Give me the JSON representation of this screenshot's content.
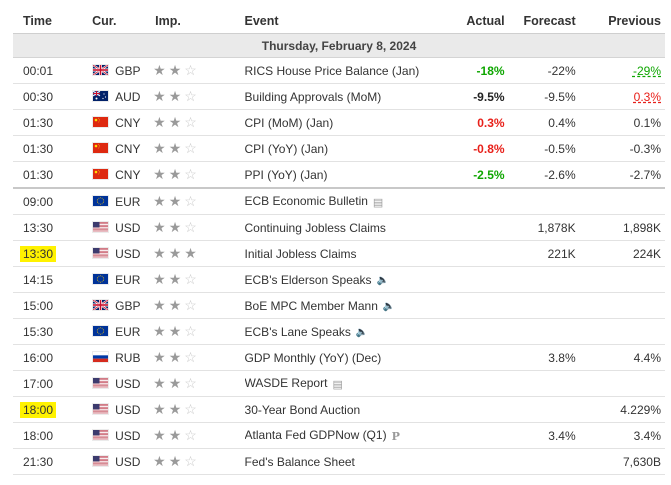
{
  "headers": {
    "time": "Time",
    "cur": "Cur.",
    "imp": "Imp.",
    "event": "Event",
    "actual": "Actual",
    "forecast": "Forecast",
    "previous": "Previous"
  },
  "day_label": "Thursday, February 8, 2024",
  "colors": {
    "positive": "#0ea600",
    "negative": "#e8201a",
    "highlight": "#fff200",
    "star_full": "#9a9a9a",
    "star_empty": "#c9c9c9"
  },
  "rows": [
    {
      "time": "00:01",
      "flag": "gb-flag-icon",
      "cur": "GBP",
      "stars": 2,
      "event": "RICS House Price Balance (Jan)",
      "icon": "",
      "actual": "-18%",
      "actual_style": "green",
      "forecast": "-22%",
      "previous": "-29%",
      "previous_style": "prev-green",
      "highlight": false
    },
    {
      "time": "00:30",
      "flag": "au-flag-icon",
      "cur": "AUD",
      "stars": 2,
      "event": "Building Approvals (MoM)",
      "icon": "",
      "actual": "-9.5%",
      "actual_style": "bold",
      "forecast": "-9.5%",
      "previous": "0.3%",
      "previous_style": "prev-red",
      "highlight": false
    },
    {
      "time": "01:30",
      "flag": "cn-flag-icon",
      "cur": "CNY",
      "stars": 2,
      "event": "CPI (MoM) (Jan)",
      "icon": "",
      "actual": "0.3%",
      "actual_style": "red",
      "forecast": "0.4%",
      "previous": "0.1%",
      "previous_style": "",
      "highlight": false
    },
    {
      "time": "01:30",
      "flag": "cn-flag-icon",
      "cur": "CNY",
      "stars": 2,
      "event": "CPI (YoY) (Jan)",
      "icon": "",
      "actual": "-0.8%",
      "actual_style": "red",
      "forecast": "-0.5%",
      "previous": "-0.3%",
      "previous_style": "",
      "highlight": false
    },
    {
      "time": "01:30",
      "flag": "cn-flag-icon",
      "cur": "CNY",
      "stars": 2,
      "event": "PPI (YoY) (Jan)",
      "icon": "",
      "actual": "-2.5%",
      "actual_style": "green",
      "forecast": "-2.6%",
      "previous": "-2.7%",
      "previous_style": "",
      "highlight": false,
      "sep": true
    },
    {
      "time": "09:00",
      "flag": "eu-flag-icon",
      "cur": "EUR",
      "stars": 2,
      "event": "ECB Economic Bulletin",
      "icon": "report",
      "actual": "",
      "actual_style": "",
      "forecast": "",
      "previous": "",
      "previous_style": "",
      "highlight": false
    },
    {
      "time": "13:30",
      "flag": "us-flag-icon",
      "cur": "USD",
      "stars": 2,
      "event": "Continuing Jobless Claims",
      "icon": "",
      "actual": "",
      "actual_style": "",
      "forecast": "1,878K",
      "previous": "1,898K",
      "previous_style": "",
      "highlight": false
    },
    {
      "time": "13:30",
      "flag": "us-flag-icon",
      "cur": "USD",
      "stars": 3,
      "event": "Initial Jobless Claims",
      "icon": "",
      "actual": "",
      "actual_style": "",
      "forecast": "221K",
      "previous": "224K",
      "previous_style": "",
      "highlight": true
    },
    {
      "time": "14:15",
      "flag": "eu-flag-icon",
      "cur": "EUR",
      "stars": 2,
      "event": "ECB's Elderson Speaks",
      "icon": "speaker",
      "actual": "",
      "actual_style": "",
      "forecast": "",
      "previous": "",
      "previous_style": "",
      "highlight": false
    },
    {
      "time": "15:00",
      "flag": "gb-flag-icon",
      "cur": "GBP",
      "stars": 2,
      "event": "BoE MPC Member Mann",
      "icon": "speaker",
      "actual": "",
      "actual_style": "",
      "forecast": "",
      "previous": "",
      "previous_style": "",
      "highlight": false
    },
    {
      "time": "15:30",
      "flag": "eu-flag-icon",
      "cur": "EUR",
      "stars": 2,
      "event": "ECB's Lane Speaks",
      "icon": "speaker",
      "actual": "",
      "actual_style": "",
      "forecast": "",
      "previous": "",
      "previous_style": "",
      "highlight": false
    },
    {
      "time": "16:00",
      "flag": "ru-flag-icon",
      "cur": "RUB",
      "stars": 2,
      "event": "GDP Monthly (YoY) (Dec)",
      "icon": "",
      "actual": "",
      "actual_style": "",
      "forecast": "3.8%",
      "previous": "4.4%",
      "previous_style": "",
      "highlight": false
    },
    {
      "time": "17:00",
      "flag": "us-flag-icon",
      "cur": "USD",
      "stars": 2,
      "event": "WASDE Report",
      "icon": "report",
      "actual": "",
      "actual_style": "",
      "forecast": "",
      "previous": "",
      "previous_style": "",
      "highlight": false
    },
    {
      "time": "18:00",
      "flag": "us-flag-icon",
      "cur": "USD",
      "stars": 2,
      "event": "30-Year Bond Auction",
      "icon": "",
      "actual": "",
      "actual_style": "",
      "forecast": "",
      "previous": "4.229%",
      "previous_style": "",
      "highlight": true
    },
    {
      "time": "18:00",
      "flag": "us-flag-icon",
      "cur": "USD",
      "stars": 2,
      "event": "Atlanta Fed GDPNow (Q1)",
      "icon": "preliminary",
      "actual": "",
      "actual_style": "",
      "forecast": "3.4%",
      "previous": "3.4%",
      "previous_style": "",
      "highlight": false
    },
    {
      "time": "21:30",
      "flag": "us-flag-icon",
      "cur": "USD",
      "stars": 2,
      "event": "Fed's Balance Sheet",
      "icon": "",
      "actual": "",
      "actual_style": "",
      "forecast": "",
      "previous": "7,630B",
      "previous_style": "",
      "highlight": false
    }
  ]
}
